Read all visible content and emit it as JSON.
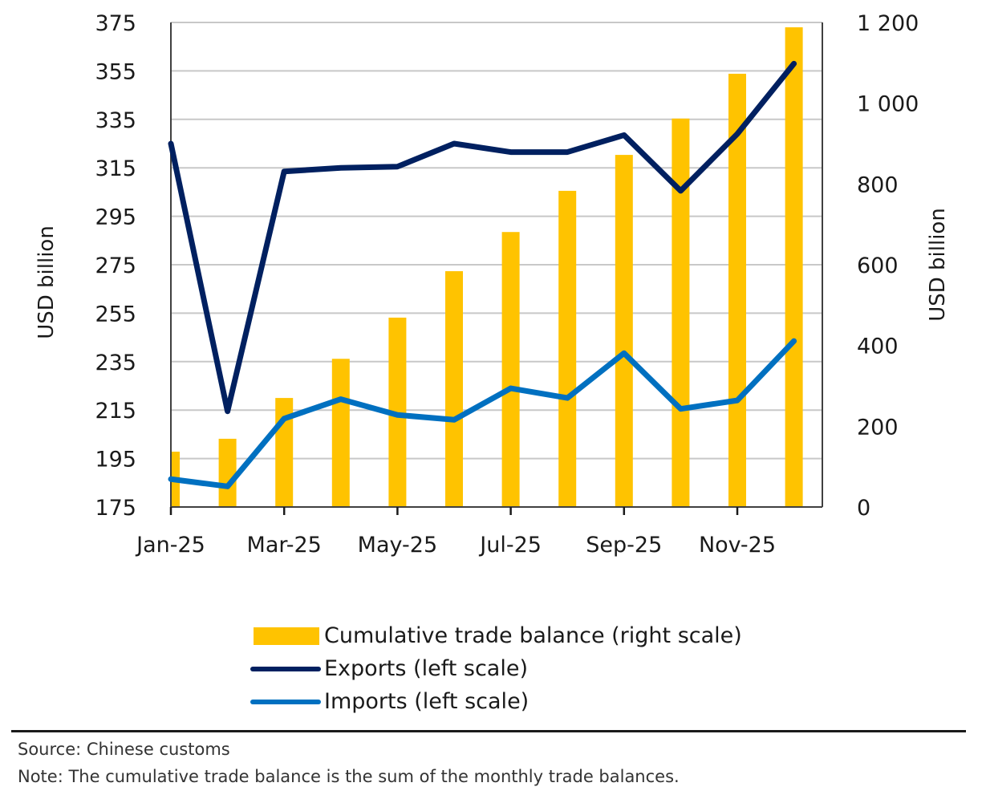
{
  "chart_data": {
    "type": "bar+line",
    "title": "",
    "categories": [
      "Jan-25",
      "Feb-25",
      "Mar-25",
      "Apr-25",
      "May-25",
      "Jun-25",
      "Jul-25",
      "Aug-25",
      "Sep-25",
      "Oct-25",
      "Nov-25",
      "Dec-25"
    ],
    "x_tick_labels": [
      "Jan-25",
      "Mar-25",
      "May-25",
      "Jul-25",
      "Sep-25",
      "Nov-25"
    ],
    "left_axis": {
      "label": "USD billion",
      "ylim": [
        175,
        375
      ],
      "ticks": [
        175,
        195,
        215,
        235,
        255,
        275,
        295,
        315,
        335,
        355,
        375
      ]
    },
    "right_axis": {
      "label": "USD billion",
      "ylim": [
        0,
        1200
      ],
      "ticks": [
        "0",
        "200",
        "400",
        "600",
        "800",
        "1 000",
        "1 200"
      ],
      "tick_values": [
        0,
        200,
        400,
        600,
        800,
        1000,
        1200
      ]
    },
    "grid": true,
    "legend_position": "bottom",
    "series": [
      {
        "name": "Cumulative trade balance (right scale)",
        "type": "bar",
        "axis": "right",
        "color": "#FFC300",
        "values": [
          137,
          169,
          270,
          367,
          469,
          584,
          681,
          783,
          872,
          962,
          1073,
          1188
        ]
      },
      {
        "name": "Exports (left scale)",
        "type": "line",
        "axis": "left",
        "color": "#002060",
        "values": [
          325,
          214.5,
          313.5,
          315,
          315.5,
          325,
          321.5,
          321.5,
          328.5,
          305.5,
          329,
          358
        ]
      },
      {
        "name": "Imports (left scale)",
        "type": "line",
        "axis": "left",
        "color": "#0070C0",
        "values": [
          186.5,
          183.5,
          211.5,
          219.5,
          213,
          211,
          224,
          220,
          238.5,
          215.5,
          219,
          243.5
        ]
      }
    ]
  },
  "footer": {
    "source": "Source: Chinese customs",
    "note": "Note:  The cumulative trade balance is the sum of the monthly trade balances."
  }
}
